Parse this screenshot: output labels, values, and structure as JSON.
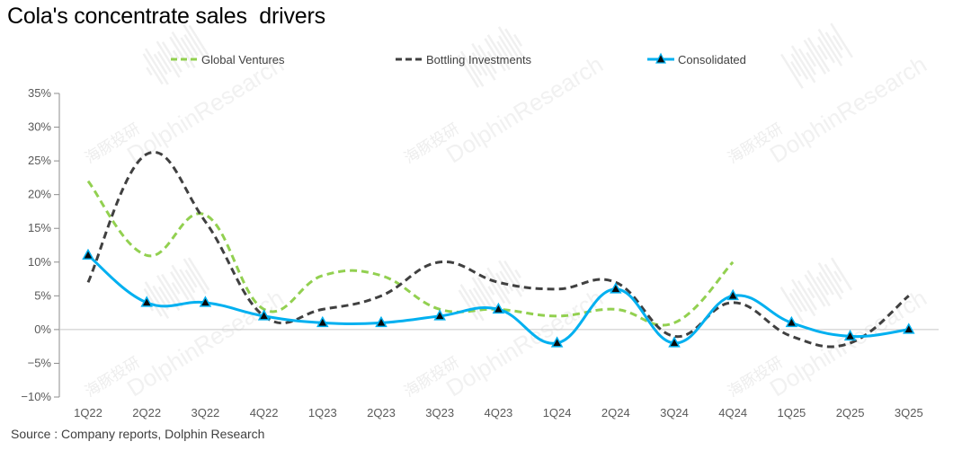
{
  "title": "Cola's concentrate sales  drivers",
  "source": "Source : Company reports, Dolphin Research",
  "watermark": [
    "海豚投研",
    "DolphinResearch"
  ],
  "chart_data": {
    "type": "line",
    "categories": [
      "1Q22",
      "2Q22",
      "3Q22",
      "4Q22",
      "1Q23",
      "2Q23",
      "3Q23",
      "4Q23",
      "1Q24",
      "2Q24",
      "3Q24",
      "4Q24",
      "1Q25",
      "2Q25",
      "3Q25"
    ],
    "ylim": [
      -10,
      35
    ],
    "yticks": [
      35,
      30,
      25,
      20,
      15,
      10,
      5,
      0,
      -5,
      -10
    ],
    "ytick_labels": [
      "35%",
      "30%",
      "25%",
      "20%",
      "15%",
      "10%",
      "5%",
      "0%",
      "−5%",
      "−10%"
    ],
    "grid": false,
    "legend": "top",
    "series": [
      {
        "name": "Global Ventures",
        "color": "#92d050",
        "style": "dashed",
        "marker": "none",
        "values": [
          22,
          11,
          17,
          3,
          8,
          8,
          3,
          3,
          2,
          3,
          1,
          10,
          null,
          null,
          null
        ]
      },
      {
        "name": "Bottling Investments",
        "color": "#404040",
        "style": "dashed",
        "marker": "none",
        "values": [
          7,
          26,
          16,
          2,
          3,
          5,
          10,
          7,
          6,
          7,
          -1,
          4,
          -1,
          -2,
          5
        ]
      },
      {
        "name": "Consolidated",
        "color": "#00b0f0",
        "style": "solid",
        "marker": "triangle",
        "values": [
          11,
          4,
          4,
          2,
          1,
          1,
          2,
          3,
          -2,
          6,
          -2,
          5,
          1,
          -1,
          0
        ]
      }
    ]
  }
}
